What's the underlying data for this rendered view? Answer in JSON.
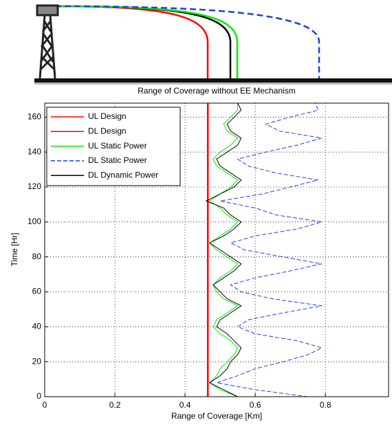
{
  "chart_data": {
    "type": "line",
    "title": "Range of Coverage without EE Mechanism",
    "xlabel": "Range of Coverage [Km]",
    "ylabel": "Time [Hr]",
    "time": [
      0,
      4,
      8,
      12,
      16,
      20,
      24,
      28,
      32,
      36,
      40,
      44,
      48,
      52,
      56,
      60,
      64,
      68,
      72,
      76,
      80,
      84,
      88,
      92,
      96,
      100,
      104,
      108,
      112,
      116,
      120,
      124,
      128,
      132,
      136,
      140,
      144,
      148,
      152,
      156,
      160,
      164,
      168
    ],
    "series": [
      {
        "name": "UL Design",
        "color": "#ff0000",
        "dashed": false,
        "values": [
          0.465,
          0.465,
          0.465,
          0.465,
          0.465,
          0.465,
          0.465,
          0.465,
          0.465,
          0.465,
          0.465,
          0.465,
          0.465,
          0.465,
          0.465,
          0.465,
          0.465,
          0.465,
          0.465,
          0.465,
          0.465,
          0.465,
          0.465,
          0.465,
          0.465,
          0.465,
          0.465,
          0.465,
          0.465,
          0.465,
          0.465,
          0.465,
          0.465,
          0.465,
          0.465,
          0.465,
          0.465,
          0.465,
          0.465,
          0.465,
          0.465,
          0.465,
          0.465
        ]
      },
      {
        "name": "DL Design",
        "color": "#ff0000",
        "dashed": false,
        "values": [
          0.465,
          0.465,
          0.465,
          0.465,
          0.465,
          0.465,
          0.465,
          0.465,
          0.465,
          0.465,
          0.465,
          0.465,
          0.465,
          0.465,
          0.465,
          0.465,
          0.465,
          0.465,
          0.465,
          0.465,
          0.465,
          0.465,
          0.465,
          0.465,
          0.465,
          0.465,
          0.465,
          0.465,
          0.465,
          0.465,
          0.465,
          0.465,
          0.465,
          0.465,
          0.465,
          0.465,
          0.465,
          0.465,
          0.465,
          0.465,
          0.465,
          0.465,
          0.465
        ]
      },
      {
        "name": "UL Static Power",
        "color": "#00ee00",
        "dashed": false,
        "values": [
          0.55,
          0.5,
          0.47,
          0.49,
          0.5,
          0.52,
          0.54,
          0.55,
          0.53,
          0.5,
          0.48,
          0.49,
          0.52,
          0.55,
          0.51,
          0.49,
          0.48,
          0.5,
          0.53,
          0.55,
          0.52,
          0.49,
          0.47,
          0.5,
          0.53,
          0.55,
          0.52,
          0.5,
          0.47,
          0.5,
          0.53,
          0.55,
          0.52,
          0.49,
          0.48,
          0.5,
          0.53,
          0.55,
          0.52,
          0.51,
          0.53,
          0.55,
          0.55
        ]
      },
      {
        "name": "DL Static Power",
        "color": "#1f3fdf",
        "dashed": true,
        "values": [
          0.75,
          0.6,
          0.49,
          0.55,
          0.6,
          0.68,
          0.75,
          0.79,
          0.72,
          0.6,
          0.55,
          0.58,
          0.68,
          0.79,
          0.65,
          0.56,
          0.53,
          0.6,
          0.7,
          0.79,
          0.68,
          0.57,
          0.53,
          0.6,
          0.72,
          0.79,
          0.66,
          0.6,
          0.5,
          0.62,
          0.7,
          0.78,
          0.66,
          0.58,
          0.55,
          0.63,
          0.72,
          0.79,
          0.67,
          0.63,
          0.7,
          0.78,
          0.77
        ]
      },
      {
        "name": "DL Dynamic Power",
        "color": "#000000",
        "dashed": false,
        "values": [
          0.55,
          0.51,
          0.47,
          0.5,
          0.52,
          0.53,
          0.55,
          0.56,
          0.54,
          0.52,
          0.49,
          0.5,
          0.53,
          0.56,
          0.52,
          0.5,
          0.48,
          0.51,
          0.54,
          0.56,
          0.53,
          0.5,
          0.47,
          0.51,
          0.54,
          0.56,
          0.53,
          0.51,
          0.46,
          0.5,
          0.54,
          0.56,
          0.53,
          0.5,
          0.49,
          0.52,
          0.55,
          0.56,
          0.53,
          0.52,
          0.54,
          0.56,
          0.55
        ]
      }
    ],
    "xlim": [
      0,
      0.98
    ],
    "xticks": [
      0,
      0.2,
      0.4,
      0.6,
      0.8
    ],
    "ylim": [
      0,
      168
    ],
    "yticks": [
      0,
      20,
      40,
      60,
      80,
      100,
      120,
      140,
      160
    ],
    "grid": true
  }
}
